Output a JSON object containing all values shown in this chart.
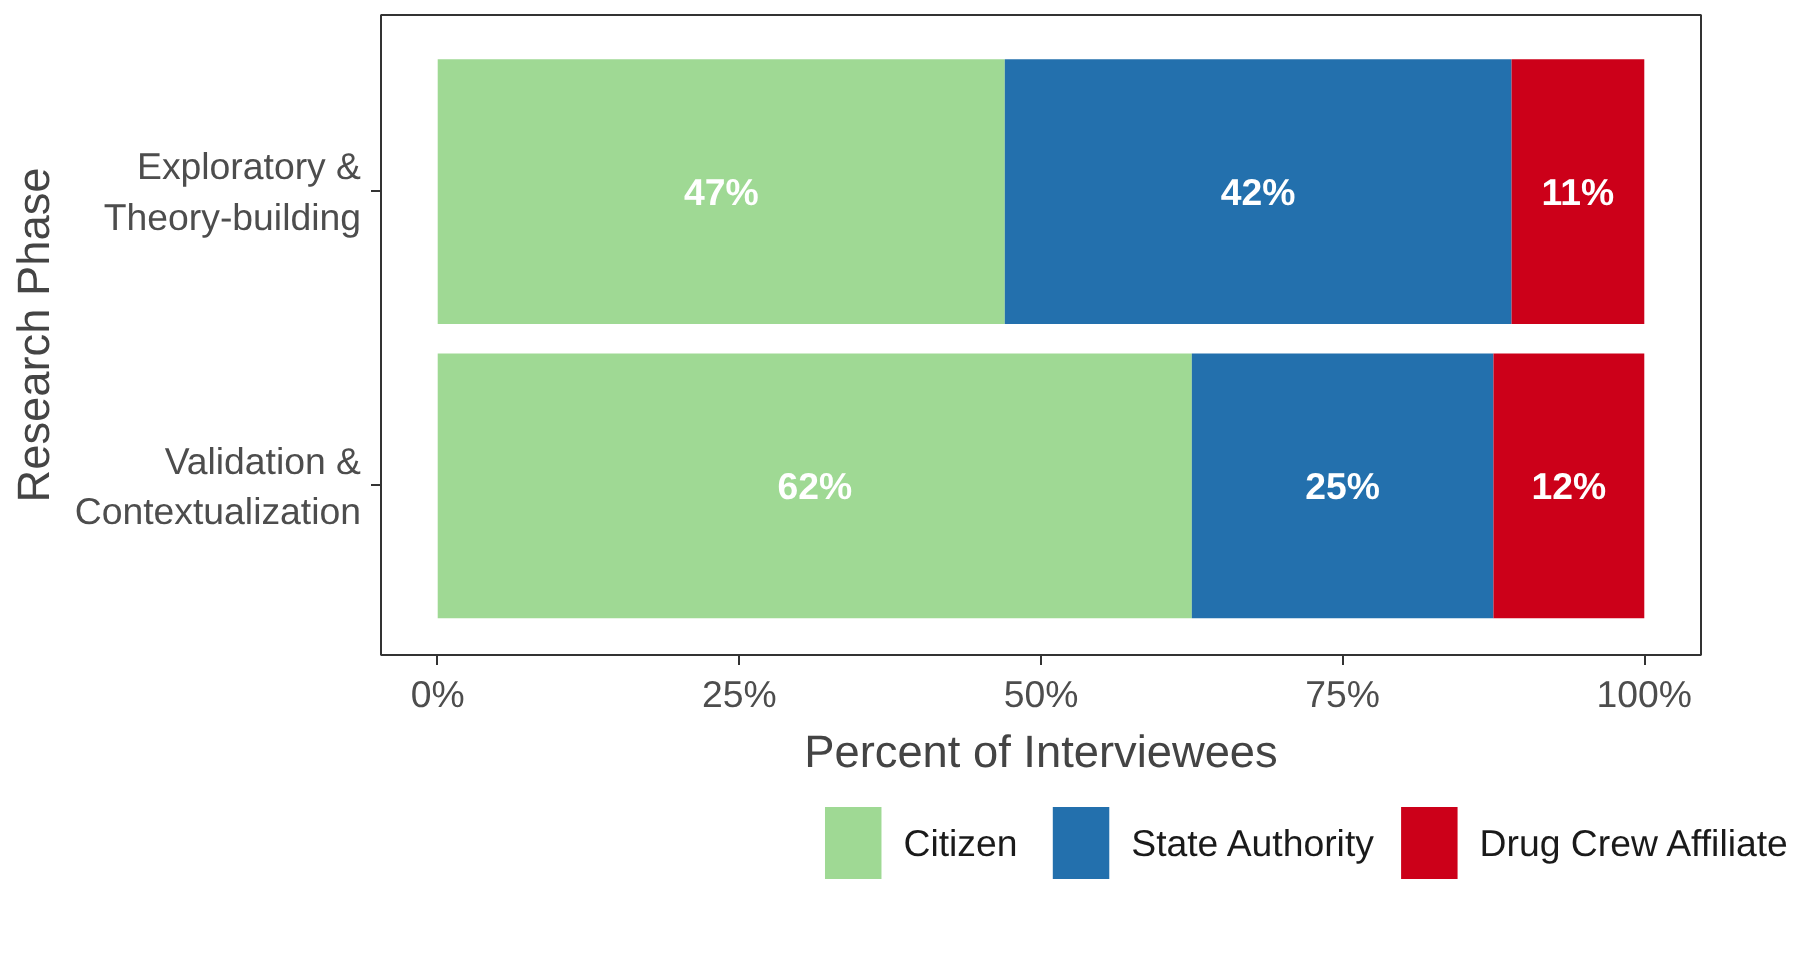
{
  "chart_data": {
    "type": "bar",
    "orientation": "horizontal",
    "stacked": true,
    "xlabel": "Percent of Interviewees",
    "ylabel": "Research Phase",
    "categories": [
      "Exploratory &\nTheory-building",
      "Validation &\nContextualization"
    ],
    "series": [
      {
        "name": "Citizen",
        "color": "#9fd994",
        "values": [
          47,
          62.5
        ],
        "value_labels": [
          "47%",
          "62%"
        ]
      },
      {
        "name": "State Authority",
        "color": "#2370ad",
        "values": [
          42,
          25
        ],
        "value_labels": [
          "42%",
          "25%"
        ]
      },
      {
        "name": "Drug Crew Affiliate",
        "color": "#cc0019",
        "values": [
          11,
          12.5
        ],
        "value_labels": [
          "11%",
          "12%"
        ]
      }
    ],
    "xlim": [
      -4.7,
      104.7
    ],
    "xticks": [
      {
        "value": 0,
        "label": "0%"
      },
      {
        "value": 25,
        "label": "25%"
      },
      {
        "value": 50,
        "label": "50%"
      },
      {
        "value": 75,
        "label": "75%"
      },
      {
        "value": 100,
        "label": "100%"
      }
    ],
    "grid": false,
    "legend": "bottom"
  }
}
